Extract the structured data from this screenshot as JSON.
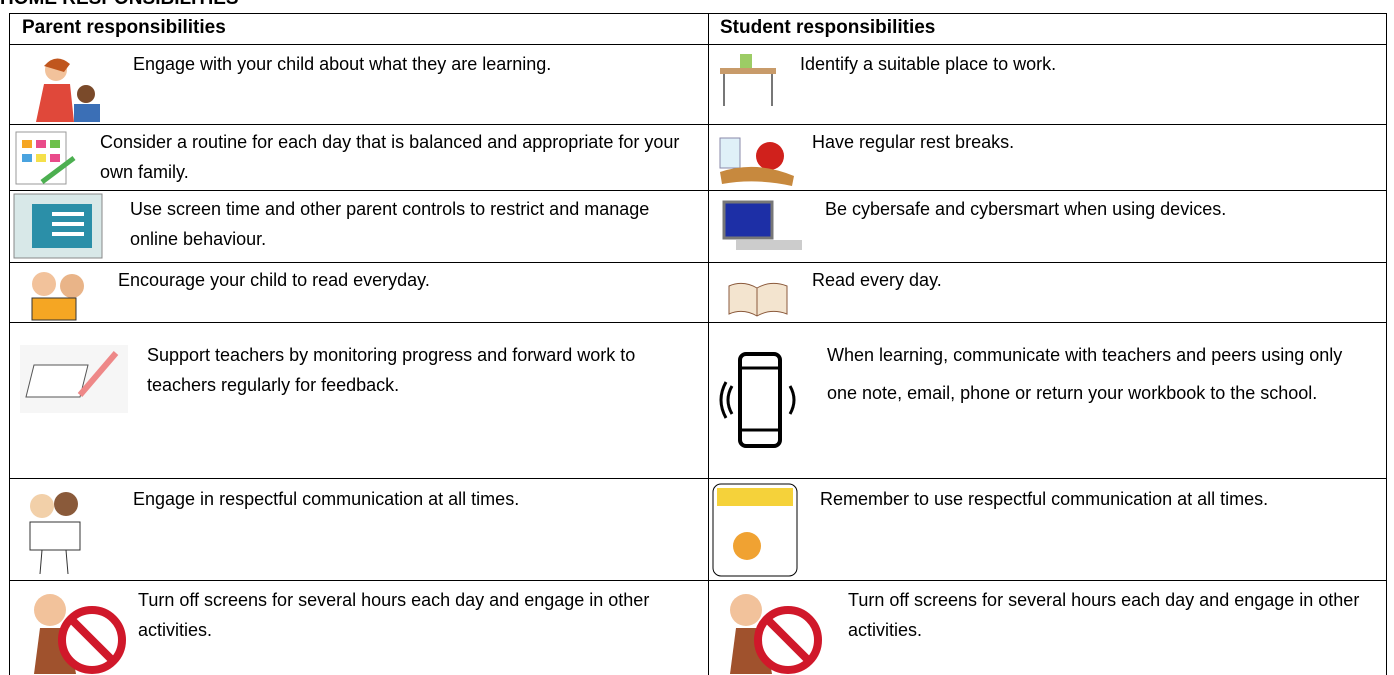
{
  "title": "HOME RESPONSIBILITIES",
  "table": {
    "headers": [
      "Parent responsibilities",
      "Student responsibilities"
    ],
    "rows": [
      [
        "Engage with your child about what they are learning.",
        "Identify a suitable place to work."
      ],
      [
        "Consider a routine for each day that is balanced and appropriate for your own family.",
        "Have regular rest breaks."
      ],
      [
        "Use screen time and other parent controls to restrict and manage online behaviour.",
        "Be cybersafe and cybersmart when using devices."
      ],
      [
        "Encourage your child to read everyday.",
        "Read every day."
      ],
      [
        "Support teachers by monitoring progress and forward work to teachers regularly for feedback.",
        "When learning, communicate with teachers and peers using only one note, email, phone or return your workbook to the school."
      ],
      [
        "Engage in respectful communication at all times.",
        "Remember to use respectful communication at all times."
      ],
      [
        "Turn off screens for several hours each day and engage in other activities.",
        "Turn off screens for several hours each day and engage in other activities."
      ]
    ]
  }
}
